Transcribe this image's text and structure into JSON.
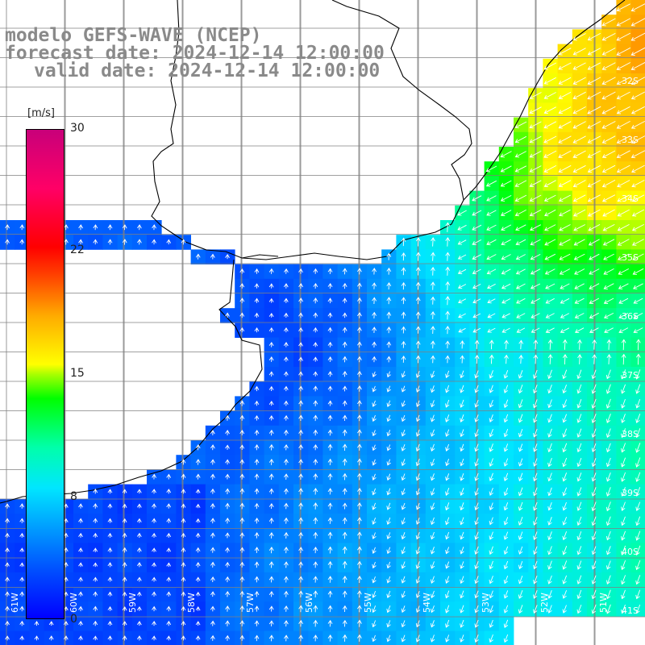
{
  "title": {
    "line1": "modelo GEFS-WAVE (NCEP)",
    "line2": "forecast date: 2024-12-14 12:00:00",
    "line3": "valid date: 2024-12-14 12:00:00"
  },
  "colorbar": {
    "unit": "[m/s]",
    "ticks": [
      "30",
      "22",
      "15",
      "8",
      "0"
    ],
    "tick_values": [
      30,
      22,
      15,
      8,
      0
    ],
    "range": [
      0,
      30
    ]
  },
  "latitude_labels": [
    "32S",
    "33S",
    "34S",
    "35S",
    "36S",
    "37S",
    "38S",
    "39S",
    "40S",
    "41S"
  ],
  "longitude_labels": [
    "61W",
    "60W",
    "59W",
    "58W",
    "57W",
    "56W",
    "55W",
    "54W",
    "53W",
    "52W",
    "51W"
  ],
  "map_extent": {
    "lon": [
      -61.3,
      -50.4
    ],
    "lat": [
      -41.3,
      -31.0
    ]
  },
  "colors": {
    "title": "#8a8a8a",
    "coast": "#000000",
    "grid": "#808080",
    "arrow": "#ffffff"
  },
  "field": {
    "variable": "wind speed",
    "units": "m/s",
    "note": "strong winds (14-19 m/s) in northeast off Uruguay/Brazil, weak winds (1-4 m/s) in southwest near Argentine coast, moderate (8-10 m/s) southeast"
  }
}
